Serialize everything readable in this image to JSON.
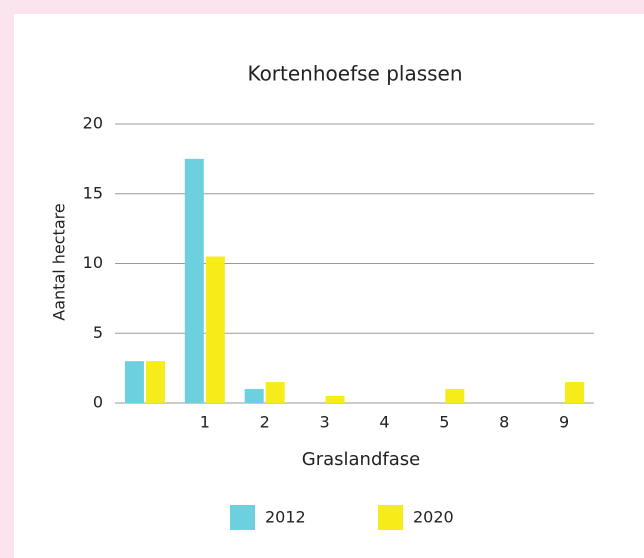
{
  "chart_data": {
    "type": "bar",
    "title": "Kortenhoefse plassen",
    "x_label": "Graslandfase",
    "y_label": "Aantal hectare",
    "categories": [
      null,
      "1",
      "2",
      "3",
      "4",
      "5",
      "8",
      "9"
    ],
    "series": [
      {
        "name": "2012",
        "color": "#6dd0df",
        "values": [
          3,
          17.5,
          1,
          0,
          0,
          0,
          0,
          0
        ]
      },
      {
        "name": "2020",
        "color": "#f5ec1a",
        "values": [
          3,
          10.5,
          1.5,
          0.5,
          0,
          1,
          0,
          1.5
        ]
      }
    ],
    "ylim": [
      0,
      20
    ],
    "yticks": [
      0,
      5,
      10,
      15,
      20
    ],
    "grid": true,
    "legend": "bottom"
  }
}
